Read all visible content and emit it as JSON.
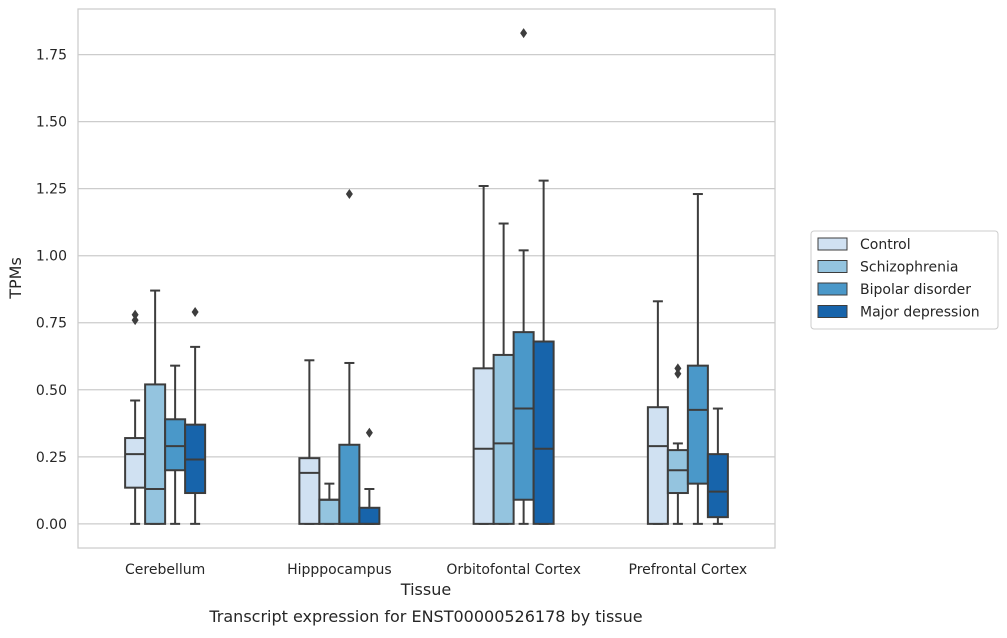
{
  "chart_data": {
    "type": "box",
    "xlabel": "Tissue",
    "ylabel": "TPMs",
    "caption": "Transcript expression for ENST00000526178 by tissue",
    "ylim": [
      -0.09,
      1.92
    ],
    "yticks": [
      0.0,
      0.25,
      0.5,
      0.75,
      1.0,
      1.25,
      1.5,
      1.75
    ],
    "ytick_labels": [
      "0.00",
      "0.25",
      "0.50",
      "0.75",
      "1.00",
      "1.25",
      "1.50",
      "1.75"
    ],
    "grid": true,
    "legend_position": "right",
    "categories": [
      "Cerebellum",
      "Hipppocampus",
      "Orbitofontal Cortex",
      "Prefrontal Cortex"
    ],
    "series": [
      {
        "name": "Control",
        "color": "#d0e1f2",
        "boxes": [
          {
            "whislo": 0.0,
            "q1": 0.135,
            "med": 0.26,
            "q3": 0.32,
            "whishi": 0.46,
            "fliers": [
              0.76,
              0.78
            ]
          },
          {
            "whislo": 0.0,
            "q1": 0.0,
            "med": 0.19,
            "q3": 0.245,
            "whishi": 0.61,
            "fliers": []
          },
          {
            "whislo": 0.0,
            "q1": 0.0,
            "med": 0.28,
            "q3": 0.58,
            "whishi": 1.26,
            "fliers": []
          },
          {
            "whislo": 0.0,
            "q1": 0.0,
            "med": 0.29,
            "q3": 0.435,
            "whishi": 0.83,
            "fliers": []
          }
        ]
      },
      {
        "name": "Schizophrenia",
        "color": "#94c4df",
        "boxes": [
          {
            "whislo": 0.0,
            "q1": 0.0,
            "med": 0.13,
            "q3": 0.52,
            "whishi": 0.87,
            "fliers": []
          },
          {
            "whislo": 0.0,
            "q1": 0.0,
            "med": 0.09,
            "q3": 0.09,
            "whishi": 0.15,
            "fliers": []
          },
          {
            "whislo": 0.0,
            "q1": 0.0,
            "med": 0.3,
            "q3": 0.63,
            "whishi": 1.12,
            "fliers": []
          },
          {
            "whislo": 0.0,
            "q1": 0.115,
            "med": 0.2,
            "q3": 0.275,
            "whishi": 0.3,
            "fliers": [
              0.56,
              0.58
            ]
          }
        ]
      },
      {
        "name": "Bipolar disorder",
        "color": "#4a98c9",
        "boxes": [
          {
            "whislo": 0.0,
            "q1": 0.2,
            "med": 0.29,
            "q3": 0.39,
            "whishi": 0.59,
            "fliers": []
          },
          {
            "whislo": 0.0,
            "q1": 0.0,
            "med": 0.0,
            "q3": 0.295,
            "whishi": 0.6,
            "fliers": [
              1.23
            ]
          },
          {
            "whislo": 0.0,
            "q1": 0.09,
            "med": 0.43,
            "q3": 0.715,
            "whishi": 1.02,
            "fliers": [
              1.83
            ]
          },
          {
            "whislo": 0.0,
            "q1": 0.15,
            "med": 0.425,
            "q3": 0.59,
            "whishi": 1.23,
            "fliers": []
          }
        ]
      },
      {
        "name": "Major depression",
        "color": "#1764ab",
        "boxes": [
          {
            "whislo": 0.0,
            "q1": 0.115,
            "med": 0.24,
            "q3": 0.37,
            "whishi": 0.66,
            "fliers": [
              0.79
            ]
          },
          {
            "whislo": 0.0,
            "q1": 0.0,
            "med": 0.0,
            "q3": 0.06,
            "whishi": 0.13,
            "fliers": [
              0.34
            ]
          },
          {
            "whislo": 0.0,
            "q1": 0.0,
            "med": 0.28,
            "q3": 0.68,
            "whishi": 1.28,
            "fliers": []
          },
          {
            "whislo": 0.0,
            "q1": 0.025,
            "med": 0.12,
            "q3": 0.26,
            "whishi": 0.43,
            "fliers": []
          }
        ]
      }
    ]
  }
}
